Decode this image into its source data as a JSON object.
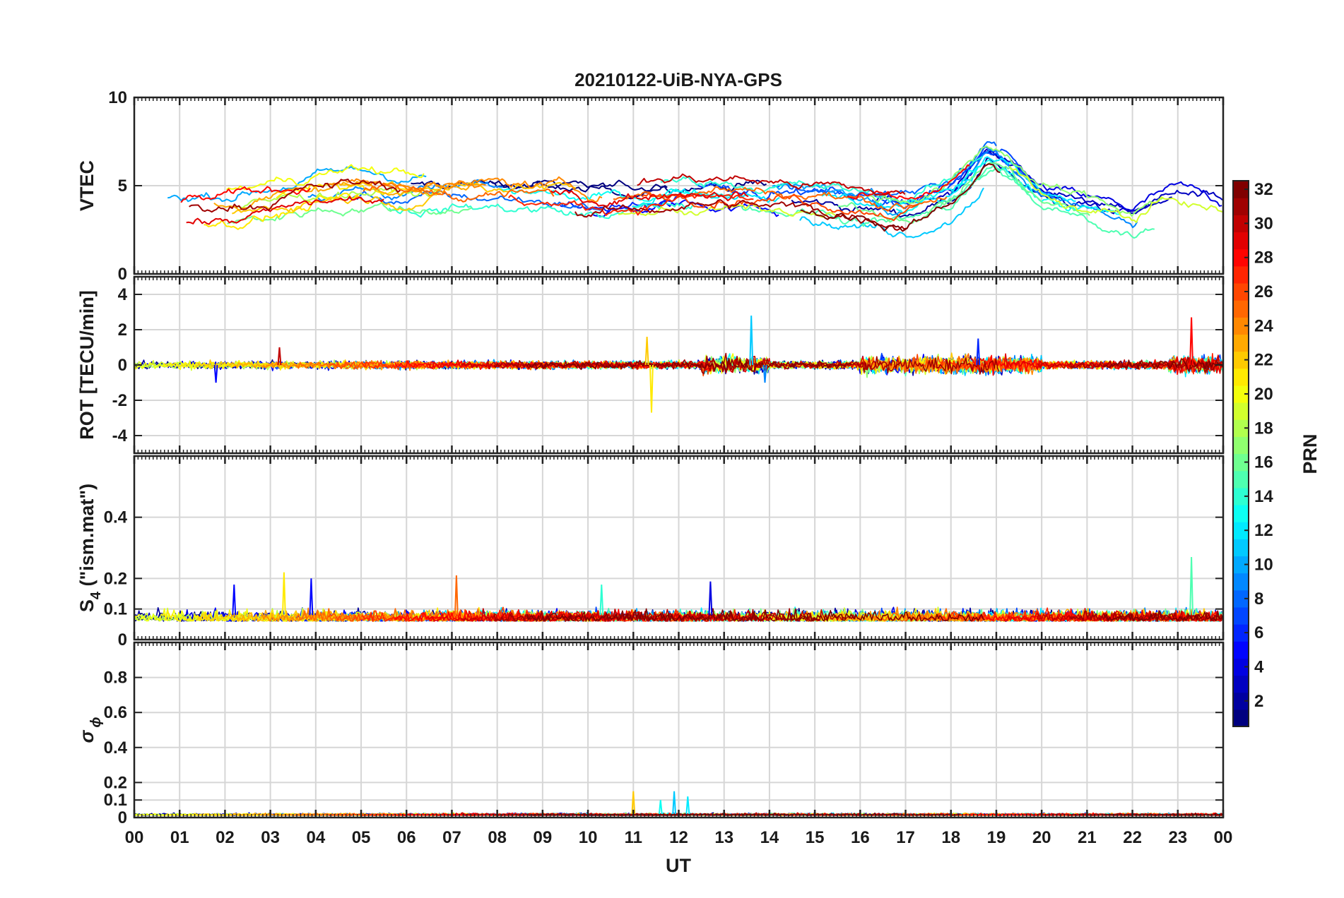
{
  "chart_data": {
    "type": "line",
    "title": "20210122-UiB-NYA-GPS",
    "xlabel": "UT",
    "x_ticks": [
      "00",
      "01",
      "02",
      "03",
      "04",
      "05",
      "06",
      "07",
      "08",
      "09",
      "10",
      "11",
      "12",
      "13",
      "14",
      "15",
      "16",
      "17",
      "18",
      "19",
      "20",
      "21",
      "22",
      "23",
      "00"
    ],
    "xlim_hours": [
      0,
      24
    ],
    "grid": true,
    "panels": [
      {
        "ylabel": "VTEC",
        "ylim": [
          0,
          10
        ],
        "yticks": [
          0,
          5,
          10
        ],
        "ytick_labels": [
          "0",
          "5",
          "10"
        ],
        "trend": [
          [
            0,
            3.0
          ],
          [
            1,
            3.3
          ],
          [
            2,
            3.4
          ],
          [
            3,
            3.8
          ],
          [
            4,
            4.4
          ],
          [
            5,
            4.6
          ],
          [
            6,
            4.4
          ],
          [
            7,
            4.5
          ],
          [
            8,
            4.5
          ],
          [
            9,
            4.4
          ],
          [
            10,
            4.0
          ],
          [
            11,
            4.2
          ],
          [
            12,
            4.6
          ],
          [
            13,
            4.6
          ],
          [
            14,
            4.4
          ],
          [
            15,
            4.2
          ],
          [
            16,
            3.9
          ],
          [
            17,
            3.6
          ],
          [
            18,
            4.5
          ],
          [
            18.8,
            6.6
          ],
          [
            19.2,
            6.3
          ],
          [
            20,
            4.3
          ],
          [
            21,
            3.6
          ],
          [
            22,
            3.0
          ],
          [
            22.6,
            3.8
          ],
          [
            23,
            4.1
          ],
          [
            24,
            3.4
          ]
        ],
        "spread": 1.2
      },
      {
        "ylabel": "ROT [TECU/min]",
        "ylim": [
          -5,
          5
        ],
        "yticks": [
          -4,
          -2,
          0,
          2,
          4
        ],
        "ytick_labels": [
          "-4",
          "-2",
          "0",
          "2",
          "4"
        ],
        "trend": [
          [
            0,
            0
          ],
          [
            24,
            0
          ]
        ],
        "spread": 0.2,
        "events": [
          {
            "t": 11.4,
            "v": -2.7,
            "prn": 21
          },
          {
            "t": 11.3,
            "v": 1.6,
            "prn": 22
          },
          {
            "t": 13.6,
            "v": 2.8,
            "prn": 11
          },
          {
            "t": 13.9,
            "v": -1.0,
            "prn": 9
          },
          {
            "t": 23.3,
            "v": 2.7,
            "prn": 28
          },
          {
            "t": 3.2,
            "v": 1.0,
            "prn": 30
          },
          {
            "t": 1.8,
            "v": -1.0,
            "prn": 5
          },
          {
            "t": 18.6,
            "v": 1.5,
            "prn": 6
          }
        ]
      },
      {
        "ylabel": "S4 (\"ism.mat\")",
        "ylim": [
          0,
          0.6
        ],
        "yticks": [
          0,
          0.1,
          0.2,
          0.4
        ],
        "ytick_labels": [
          "0",
          "0.1",
          "0.2",
          "0.4"
        ],
        "trend": [
          [
            0,
            0.08
          ],
          [
            24,
            0.08
          ]
        ],
        "spread": 0.03,
        "events": [
          {
            "t": 3.3,
            "v": 0.22,
            "prn": 21
          },
          {
            "t": 3.9,
            "v": 0.2,
            "prn": 5
          },
          {
            "t": 7.1,
            "v": 0.21,
            "prn": 25
          },
          {
            "t": 2.2,
            "v": 0.18,
            "prn": 5
          },
          {
            "t": 12.7,
            "v": 0.19,
            "prn": 4
          },
          {
            "t": 23.3,
            "v": 0.27,
            "prn": 15
          },
          {
            "t": 10.3,
            "v": 0.18,
            "prn": 14
          }
        ]
      },
      {
        "ylabel": "σ ϕ",
        "ylim": [
          0,
          1
        ],
        "yticks": [
          0,
          0.1,
          0.2,
          0.4,
          0.6,
          0.8
        ],
        "ytick_labels": [
          "0",
          "0.1",
          "0.2",
          "0.4",
          "0.6",
          "0.8"
        ],
        "trend": [
          [
            0,
            0.02
          ],
          [
            24,
            0.02
          ]
        ],
        "spread": 0.01,
        "events": [
          {
            "t": 11.0,
            "v": 0.15,
            "prn": 22
          },
          {
            "t": 11.9,
            "v": 0.15,
            "prn": 11
          },
          {
            "t": 12.2,
            "v": 0.12,
            "prn": 12
          },
          {
            "t": 11.6,
            "v": 0.1,
            "prn": 13
          }
        ]
      }
    ],
    "series_count": 32,
    "colorbar": {
      "label": "PRN",
      "range": [
        1,
        32
      ],
      "ticks": [
        2,
        4,
        6,
        8,
        10,
        12,
        14,
        16,
        18,
        20,
        22,
        24,
        26,
        28,
        30,
        32
      ],
      "colormap": "jet"
    }
  }
}
